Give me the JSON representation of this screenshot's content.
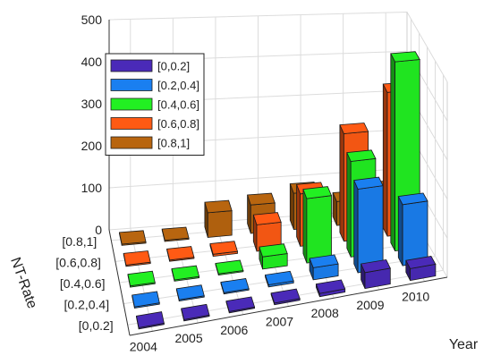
{
  "chart_data": {
    "type": "bar3d",
    "title": "",
    "xlabel": "Year",
    "ylabel": "NT-Rate",
    "zlabel": "",
    "zlim": [
      0,
      500
    ],
    "z_ticks": [
      "0",
      "100",
      "200",
      "300",
      "400",
      "500"
    ],
    "categories": [
      "2004",
      "2005",
      "2006",
      "2007",
      "2008",
      "2009",
      "2010"
    ],
    "rate_bins": [
      "[0,0.2]",
      "[0.2,0.4]",
      "[0.4,0.6]",
      "[0.6,0.8]",
      "[0.8,1]"
    ],
    "grid": true,
    "legend_position": "top-left",
    "series": [
      {
        "name": "[0,0.2]",
        "color": "#4a2ab8",
        "values": [
          3,
          3,
          3,
          4,
          8,
          40,
          30
        ]
      },
      {
        "name": "[0.2,0.4]",
        "color": "#1a7ff0",
        "values": [
          3,
          3,
          3,
          5,
          30,
          210,
          155
        ]
      },
      {
        "name": "[0.4,0.6]",
        "color": "#22f022",
        "values": [
          3,
          3,
          3,
          30,
          160,
          240,
          480
        ]
      },
      {
        "name": "[0.6,0.8]",
        "color": "#ff5a14",
        "values": [
          3,
          3,
          5,
          65,
          130,
          270,
          365
        ]
      },
      {
        "name": "[0.8,1]",
        "color": "#b8650f",
        "values": [
          3,
          3,
          60,
          70,
          90,
          60,
          80
        ]
      }
    ]
  }
}
